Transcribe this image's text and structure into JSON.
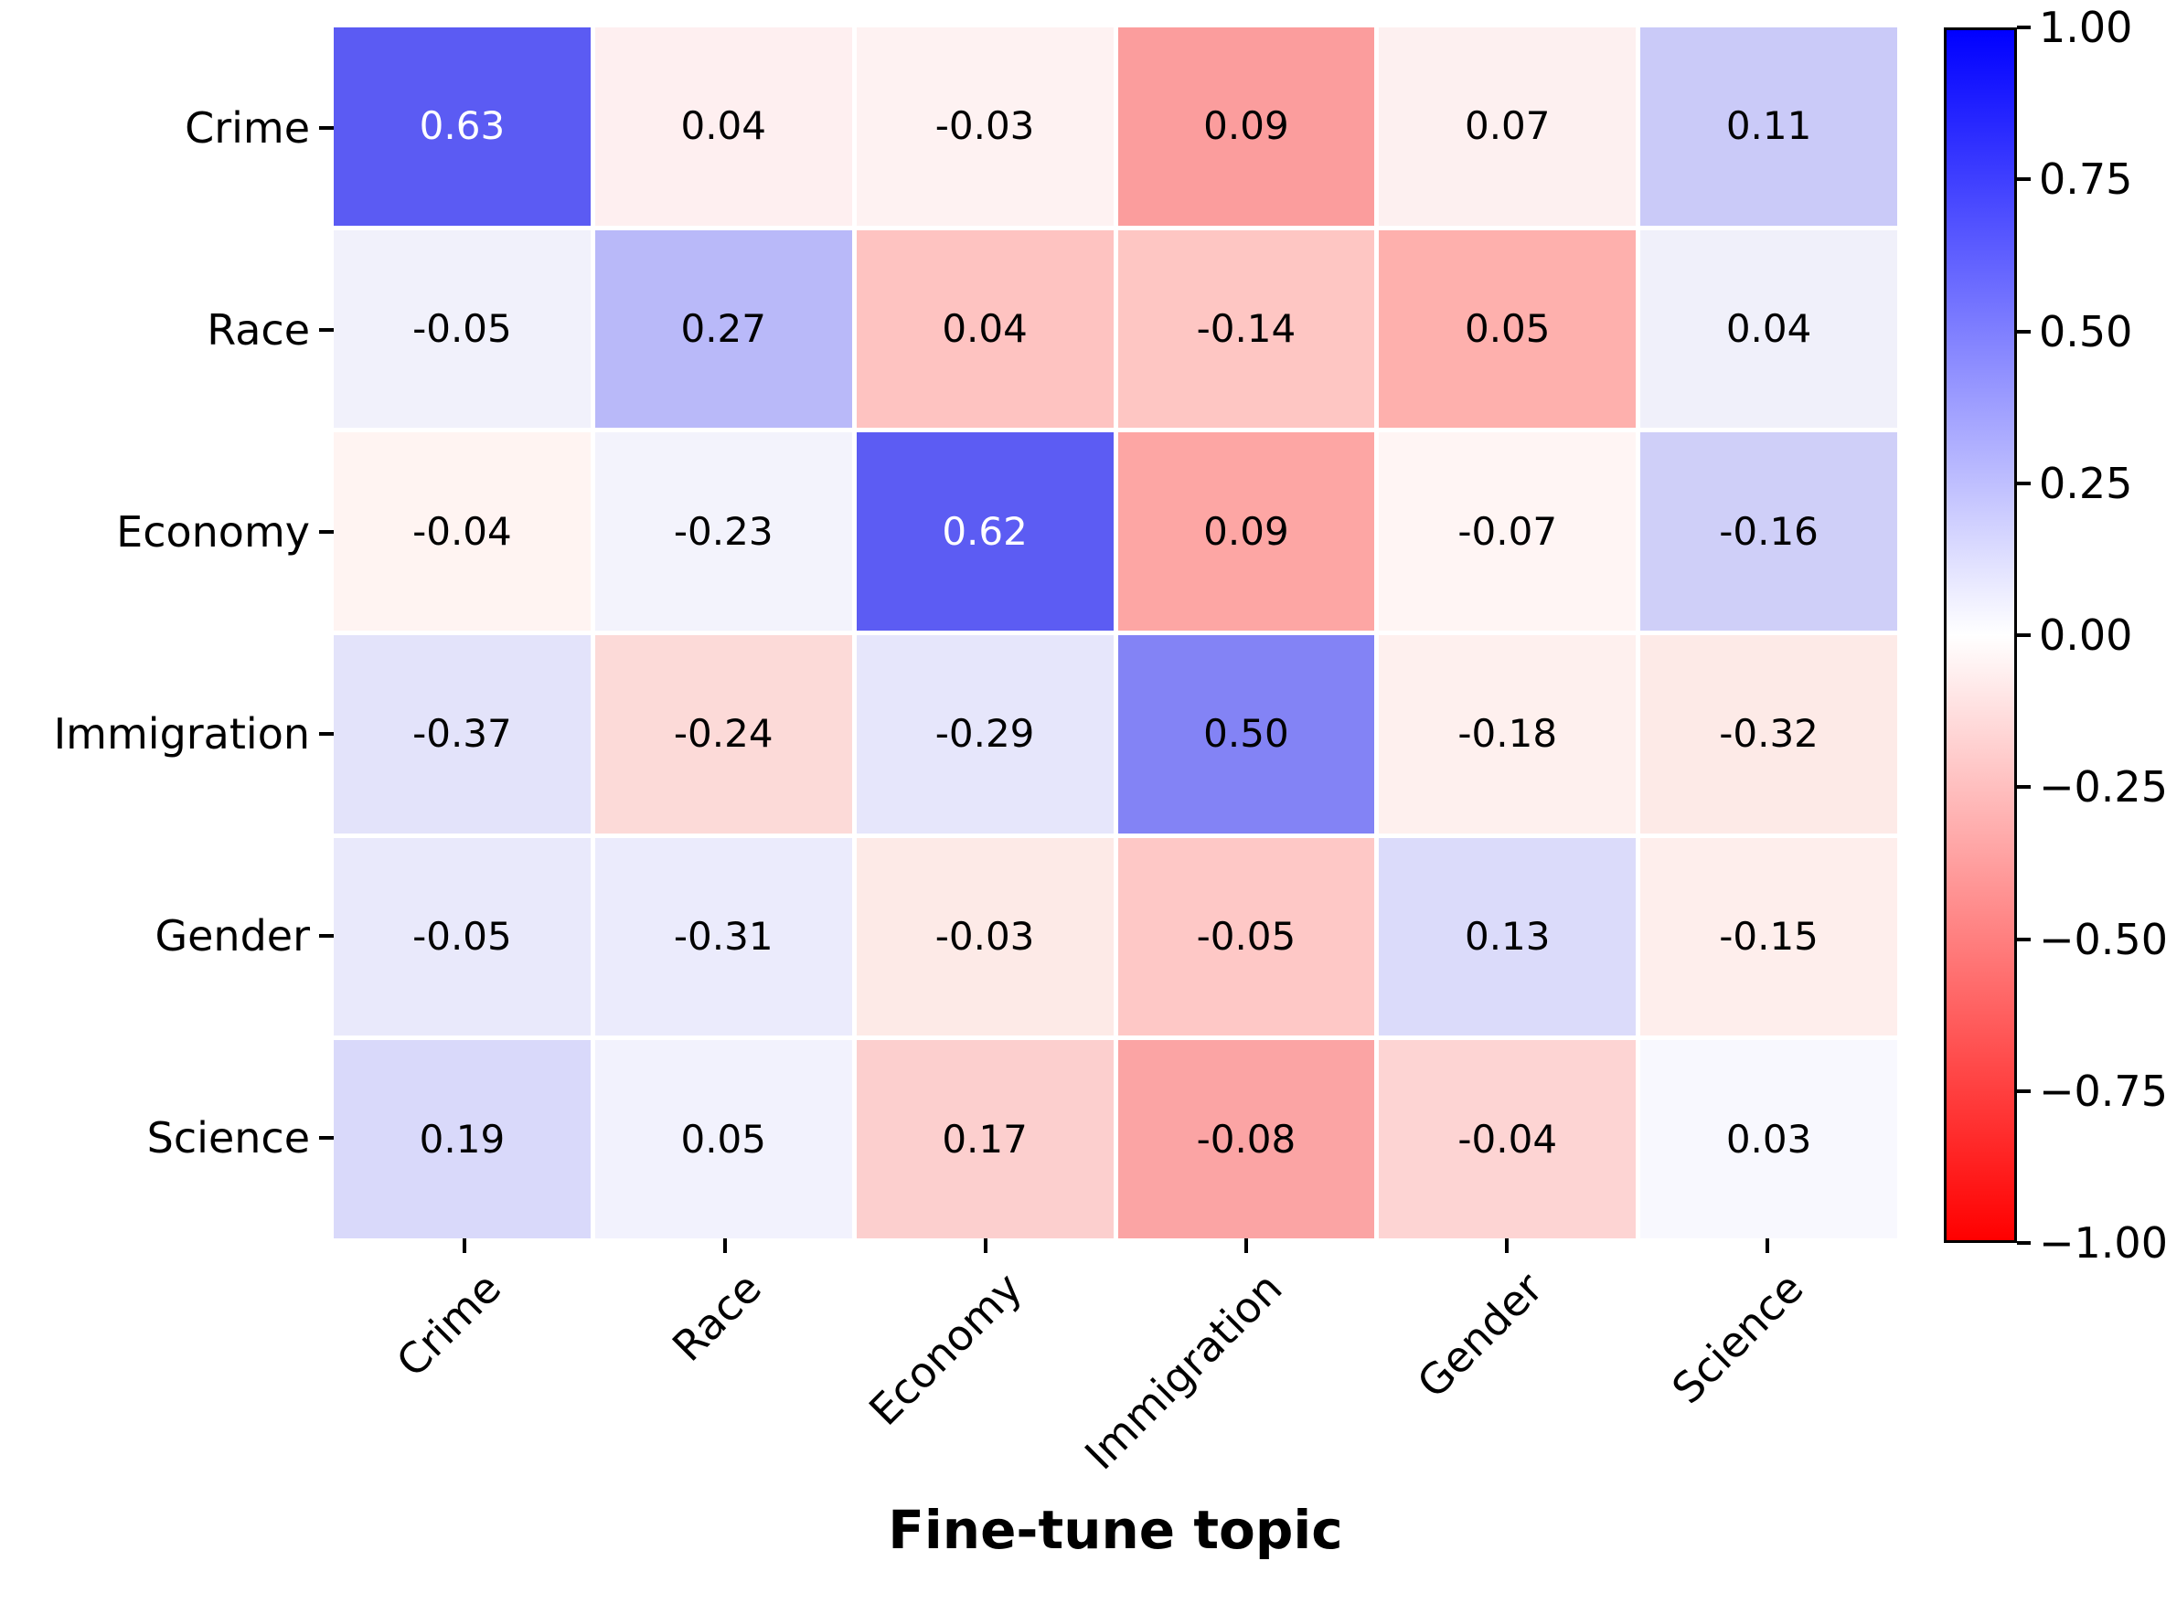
{
  "figure": {
    "background_color": "#ffffff",
    "text_color": "#000000"
  },
  "chart_data": {
    "type": "heatmap",
    "title": "",
    "x_axis_title": "Fine-tune topic",
    "y_axis_title": "",
    "categories_x": [
      "Crime",
      "Race",
      "Economy",
      "Immigration",
      "Gender",
      "Science"
    ],
    "categories_y": [
      "Crime",
      "Race",
      "Economy",
      "Immigration",
      "Gender",
      "Science"
    ],
    "values": [
      [
        0.63,
        0.04,
        -0.03,
        0.09,
        0.07,
        0.11
      ],
      [
        -0.05,
        0.27,
        0.04,
        -0.14,
        0.05,
        0.04
      ],
      [
        -0.04,
        -0.23,
        0.62,
        0.09,
        -0.07,
        -0.16
      ],
      [
        -0.37,
        -0.24,
        -0.29,
        0.5,
        -0.18,
        -0.32
      ],
      [
        -0.05,
        -0.31,
        -0.03,
        -0.05,
        0.13,
        -0.15
      ],
      [
        0.19,
        0.05,
        0.17,
        -0.08,
        -0.04,
        0.03
      ]
    ],
    "cell_labels": [
      [
        "0.63",
        "0.04",
        "-0.03",
        "0.09",
        "0.07",
        "0.11"
      ],
      [
        "-0.05",
        "0.27",
        "0.04",
        "-0.14",
        "0.05",
        "0.04"
      ],
      [
        "-0.04",
        "-0.23",
        "0.62",
        "0.09",
        "-0.07",
        "-0.16"
      ],
      [
        "-0.37",
        "-0.24",
        "-0.29",
        "0.50",
        "-0.18",
        "-0.32"
      ],
      [
        "-0.05",
        "-0.31",
        "-0.03",
        "-0.05",
        "0.13",
        "-0.15"
      ],
      [
        "0.19",
        "0.05",
        "0.17",
        "-0.08",
        "-0.04",
        "0.03"
      ]
    ],
    "cell_colors": [
      [
        "#5b5bf3",
        "#feeff0",
        "#fef2f2",
        "#fb9d9d",
        "#fdf0f0",
        "#cacaf8"
      ],
      [
        "#f1f1fb",
        "#b9b9f9",
        "#fec3c1",
        "#fec6c3",
        "#feb0ad",
        "#f0f0fa"
      ],
      [
        "#fff4f2",
        "#f3f3fc",
        "#5c5cf3",
        "#fda6a4",
        "#fff5f4",
        "#cfcff8"
      ],
      [
        "#e3e3fa",
        "#fcdad8",
        "#e6e6fb",
        "#8383f5",
        "#fef0ee",
        "#fdeae7"
      ],
      [
        "#e9e9fb",
        "#ebebfc",
        "#fdeae7",
        "#fec8c6",
        "#dbdbfa",
        "#feeeec"
      ],
      [
        "#d9d9fa",
        "#f2f2fd",
        "#fccfce",
        "#fba4a4",
        "#fdd4d3",
        "#f8f8fe"
      ]
    ],
    "cell_text_colors": [
      [
        "#ffffff",
        "#000000",
        "#000000",
        "#000000",
        "#000000",
        "#000000"
      ],
      [
        "#000000",
        "#000000",
        "#000000",
        "#000000",
        "#000000",
        "#000000"
      ],
      [
        "#000000",
        "#000000",
        "#ffffff",
        "#000000",
        "#000000",
        "#000000"
      ],
      [
        "#000000",
        "#000000",
        "#000000",
        "#000000",
        "#000000",
        "#000000"
      ],
      [
        "#000000",
        "#000000",
        "#000000",
        "#000000",
        "#000000",
        "#000000"
      ],
      [
        "#000000",
        "#000000",
        "#000000",
        "#000000",
        "#000000",
        "#000000"
      ]
    ],
    "grid_line_color": "#ffffff",
    "legend_position": "right-colorbar",
    "colorbar": {
      "vmin": -1.0,
      "vmax": 1.0,
      "tick_labels": [
        "1.00",
        "0.75",
        "0.50",
        "0.25",
        "0.00",
        "−0.25",
        "−0.50",
        "−0.75",
        "−1.00"
      ],
      "color_top": "#0000ff",
      "color_mid": "#ffffff",
      "color_bottom": "#ff0000"
    }
  }
}
